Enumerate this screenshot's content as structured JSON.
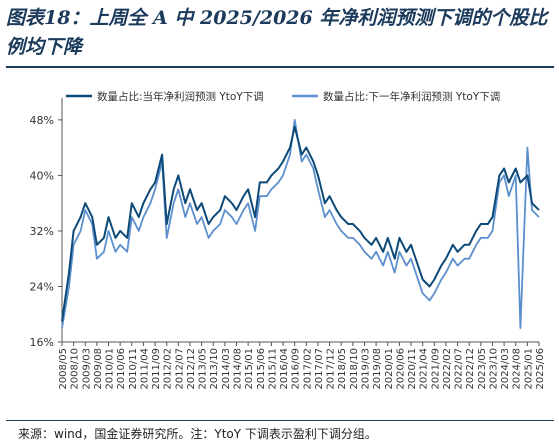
{
  "title": "图表18：上周全 A 中 2025/2026 年净利润预测下调的个股比例均下降",
  "source": "来源：wind，国金证券研究所。注：YtoY 下调表示盈利下调分组。",
  "colors": {
    "current_year": "#0d4a78",
    "next_year": "#5b8fcd",
    "title": "#1b3a5c"
  },
  "chart_data": {
    "type": "line",
    "title": "",
    "xlabel": "",
    "ylabel": "",
    "ylim": [
      0.16,
      0.5
    ],
    "yticks": [
      "16%",
      "24%",
      "32%",
      "40%",
      "48%"
    ],
    "ytick_values": [
      0.16,
      0.24,
      0.32,
      0.4,
      0.48
    ],
    "grid": false,
    "legend_position": "top",
    "x_tick_labels": [
      "2008/05",
      "2008/10",
      "2009/03",
      "2009/08",
      "2010/01",
      "2010/06",
      "2010/11",
      "2011/04",
      "2011/09",
      "2012/02",
      "2012/07",
      "2012/12",
      "2013/05",
      "2013/10",
      "2014/03",
      "2014/08",
      "2015/01",
      "2015/06",
      "2015/11",
      "2016/04",
      "2016/09",
      "2017/02",
      "2017/07",
      "2017/12",
      "2018/05",
      "2018/10",
      "2019/03",
      "2019/08",
      "2020/01",
      "2020/06",
      "2020/11",
      "2021/04",
      "2021/09",
      "2022/02",
      "2022/07",
      "2022/12",
      "2023/05",
      "2023/10",
      "2024/03",
      "2024/08",
      "2025/01",
      "2025/06"
    ],
    "series": [
      {
        "name": "数量占比:当年净利润预测 YtoY下调",
        "x": [
          "2008/05",
          "2008/08",
          "2008/10",
          "2009/01",
          "2009/03",
          "2009/06",
          "2009/08",
          "2009/11",
          "2010/01",
          "2010/04",
          "2010/06",
          "2010/09",
          "2010/11",
          "2011/02",
          "2011/04",
          "2011/07",
          "2011/09",
          "2011/12",
          "2012/02",
          "2012/05",
          "2012/07",
          "2012/10",
          "2012/12",
          "2013/03",
          "2013/05",
          "2013/08",
          "2013/10",
          "2014/01",
          "2014/03",
          "2014/06",
          "2014/08",
          "2014/11",
          "2015/01",
          "2015/04",
          "2015/06",
          "2015/09",
          "2015/11",
          "2016/02",
          "2016/04",
          "2016/07",
          "2016/09",
          "2016/12",
          "2017/02",
          "2017/05",
          "2017/07",
          "2017/10",
          "2017/12",
          "2018/03",
          "2018/05",
          "2018/08",
          "2018/10",
          "2019/01",
          "2019/03",
          "2019/06",
          "2019/08",
          "2019/11",
          "2020/01",
          "2020/04",
          "2020/06",
          "2020/09",
          "2020/11",
          "2021/02",
          "2021/04",
          "2021/07",
          "2021/09",
          "2021/12",
          "2022/02",
          "2022/05",
          "2022/07",
          "2022/10",
          "2022/12",
          "2023/03",
          "2023/05",
          "2023/08",
          "2023/10",
          "2024/01",
          "2024/03",
          "2024/05",
          "2024/08",
          "2024/10",
          "2025/01",
          "2025/03",
          "2025/06"
        ],
        "values": [
          0.19,
          0.26,
          0.32,
          0.34,
          0.36,
          0.34,
          0.3,
          0.31,
          0.34,
          0.31,
          0.32,
          0.31,
          0.36,
          0.34,
          0.36,
          0.38,
          0.39,
          0.43,
          0.33,
          0.38,
          0.4,
          0.36,
          0.38,
          0.35,
          0.36,
          0.33,
          0.34,
          0.35,
          0.37,
          0.36,
          0.35,
          0.37,
          0.38,
          0.34,
          0.39,
          0.39,
          0.4,
          0.41,
          0.42,
          0.44,
          0.47,
          0.43,
          0.44,
          0.42,
          0.4,
          0.36,
          0.37,
          0.35,
          0.34,
          0.33,
          0.33,
          0.32,
          0.31,
          0.3,
          0.31,
          0.29,
          0.31,
          0.28,
          0.31,
          0.29,
          0.3,
          0.27,
          0.25,
          0.24,
          0.25,
          0.27,
          0.28,
          0.3,
          0.29,
          0.3,
          0.3,
          0.32,
          0.33,
          0.33,
          0.34,
          0.4,
          0.41,
          0.39,
          0.41,
          0.39,
          0.4,
          0.36,
          0.35
        ]
      },
      {
        "name": "数量占比:下一年净利润预测 YtoY下调",
        "x": [
          "2008/05",
          "2008/08",
          "2008/10",
          "2009/01",
          "2009/03",
          "2009/06",
          "2009/08",
          "2009/11",
          "2010/01",
          "2010/04",
          "2010/06",
          "2010/09",
          "2010/11",
          "2011/02",
          "2011/04",
          "2011/07",
          "2011/09",
          "2011/12",
          "2012/02",
          "2012/05",
          "2012/07",
          "2012/10",
          "2012/12",
          "2013/03",
          "2013/05",
          "2013/08",
          "2013/10",
          "2014/01",
          "2014/03",
          "2014/06",
          "2014/08",
          "2014/11",
          "2015/01",
          "2015/04",
          "2015/06",
          "2015/09",
          "2015/11",
          "2016/02",
          "2016/04",
          "2016/07",
          "2016/09",
          "2016/12",
          "2017/02",
          "2017/05",
          "2017/07",
          "2017/10",
          "2017/12",
          "2018/03",
          "2018/05",
          "2018/08",
          "2018/10",
          "2019/01",
          "2019/03",
          "2019/06",
          "2019/08",
          "2019/11",
          "2020/01",
          "2020/04",
          "2020/06",
          "2020/09",
          "2020/11",
          "2021/02",
          "2021/04",
          "2021/07",
          "2021/09",
          "2021/12",
          "2022/02",
          "2022/05",
          "2022/07",
          "2022/10",
          "2022/12",
          "2023/03",
          "2023/05",
          "2023/08",
          "2023/10",
          "2024/01",
          "2024/03",
          "2024/05",
          "2024/08",
          "2024/10",
          "2025/01",
          "2025/03",
          "2025/06"
        ],
        "values": [
          0.18,
          0.24,
          0.3,
          0.32,
          0.35,
          0.33,
          0.28,
          0.29,
          0.32,
          0.29,
          0.3,
          0.29,
          0.34,
          0.32,
          0.34,
          0.36,
          0.38,
          0.42,
          0.31,
          0.36,
          0.38,
          0.34,
          0.36,
          0.33,
          0.34,
          0.31,
          0.32,
          0.33,
          0.35,
          0.34,
          0.33,
          0.35,
          0.36,
          0.32,
          0.37,
          0.37,
          0.38,
          0.39,
          0.4,
          0.43,
          0.48,
          0.42,
          0.43,
          0.41,
          0.38,
          0.34,
          0.35,
          0.33,
          0.32,
          0.31,
          0.31,
          0.3,
          0.29,
          0.28,
          0.29,
          0.27,
          0.29,
          0.26,
          0.29,
          0.27,
          0.28,
          0.25,
          0.23,
          0.22,
          0.23,
          0.25,
          0.26,
          0.28,
          0.27,
          0.28,
          0.28,
          0.3,
          0.31,
          0.31,
          0.32,
          0.39,
          0.4,
          0.37,
          0.4,
          0.18,
          0.44,
          0.35,
          0.34
        ]
      }
    ]
  }
}
